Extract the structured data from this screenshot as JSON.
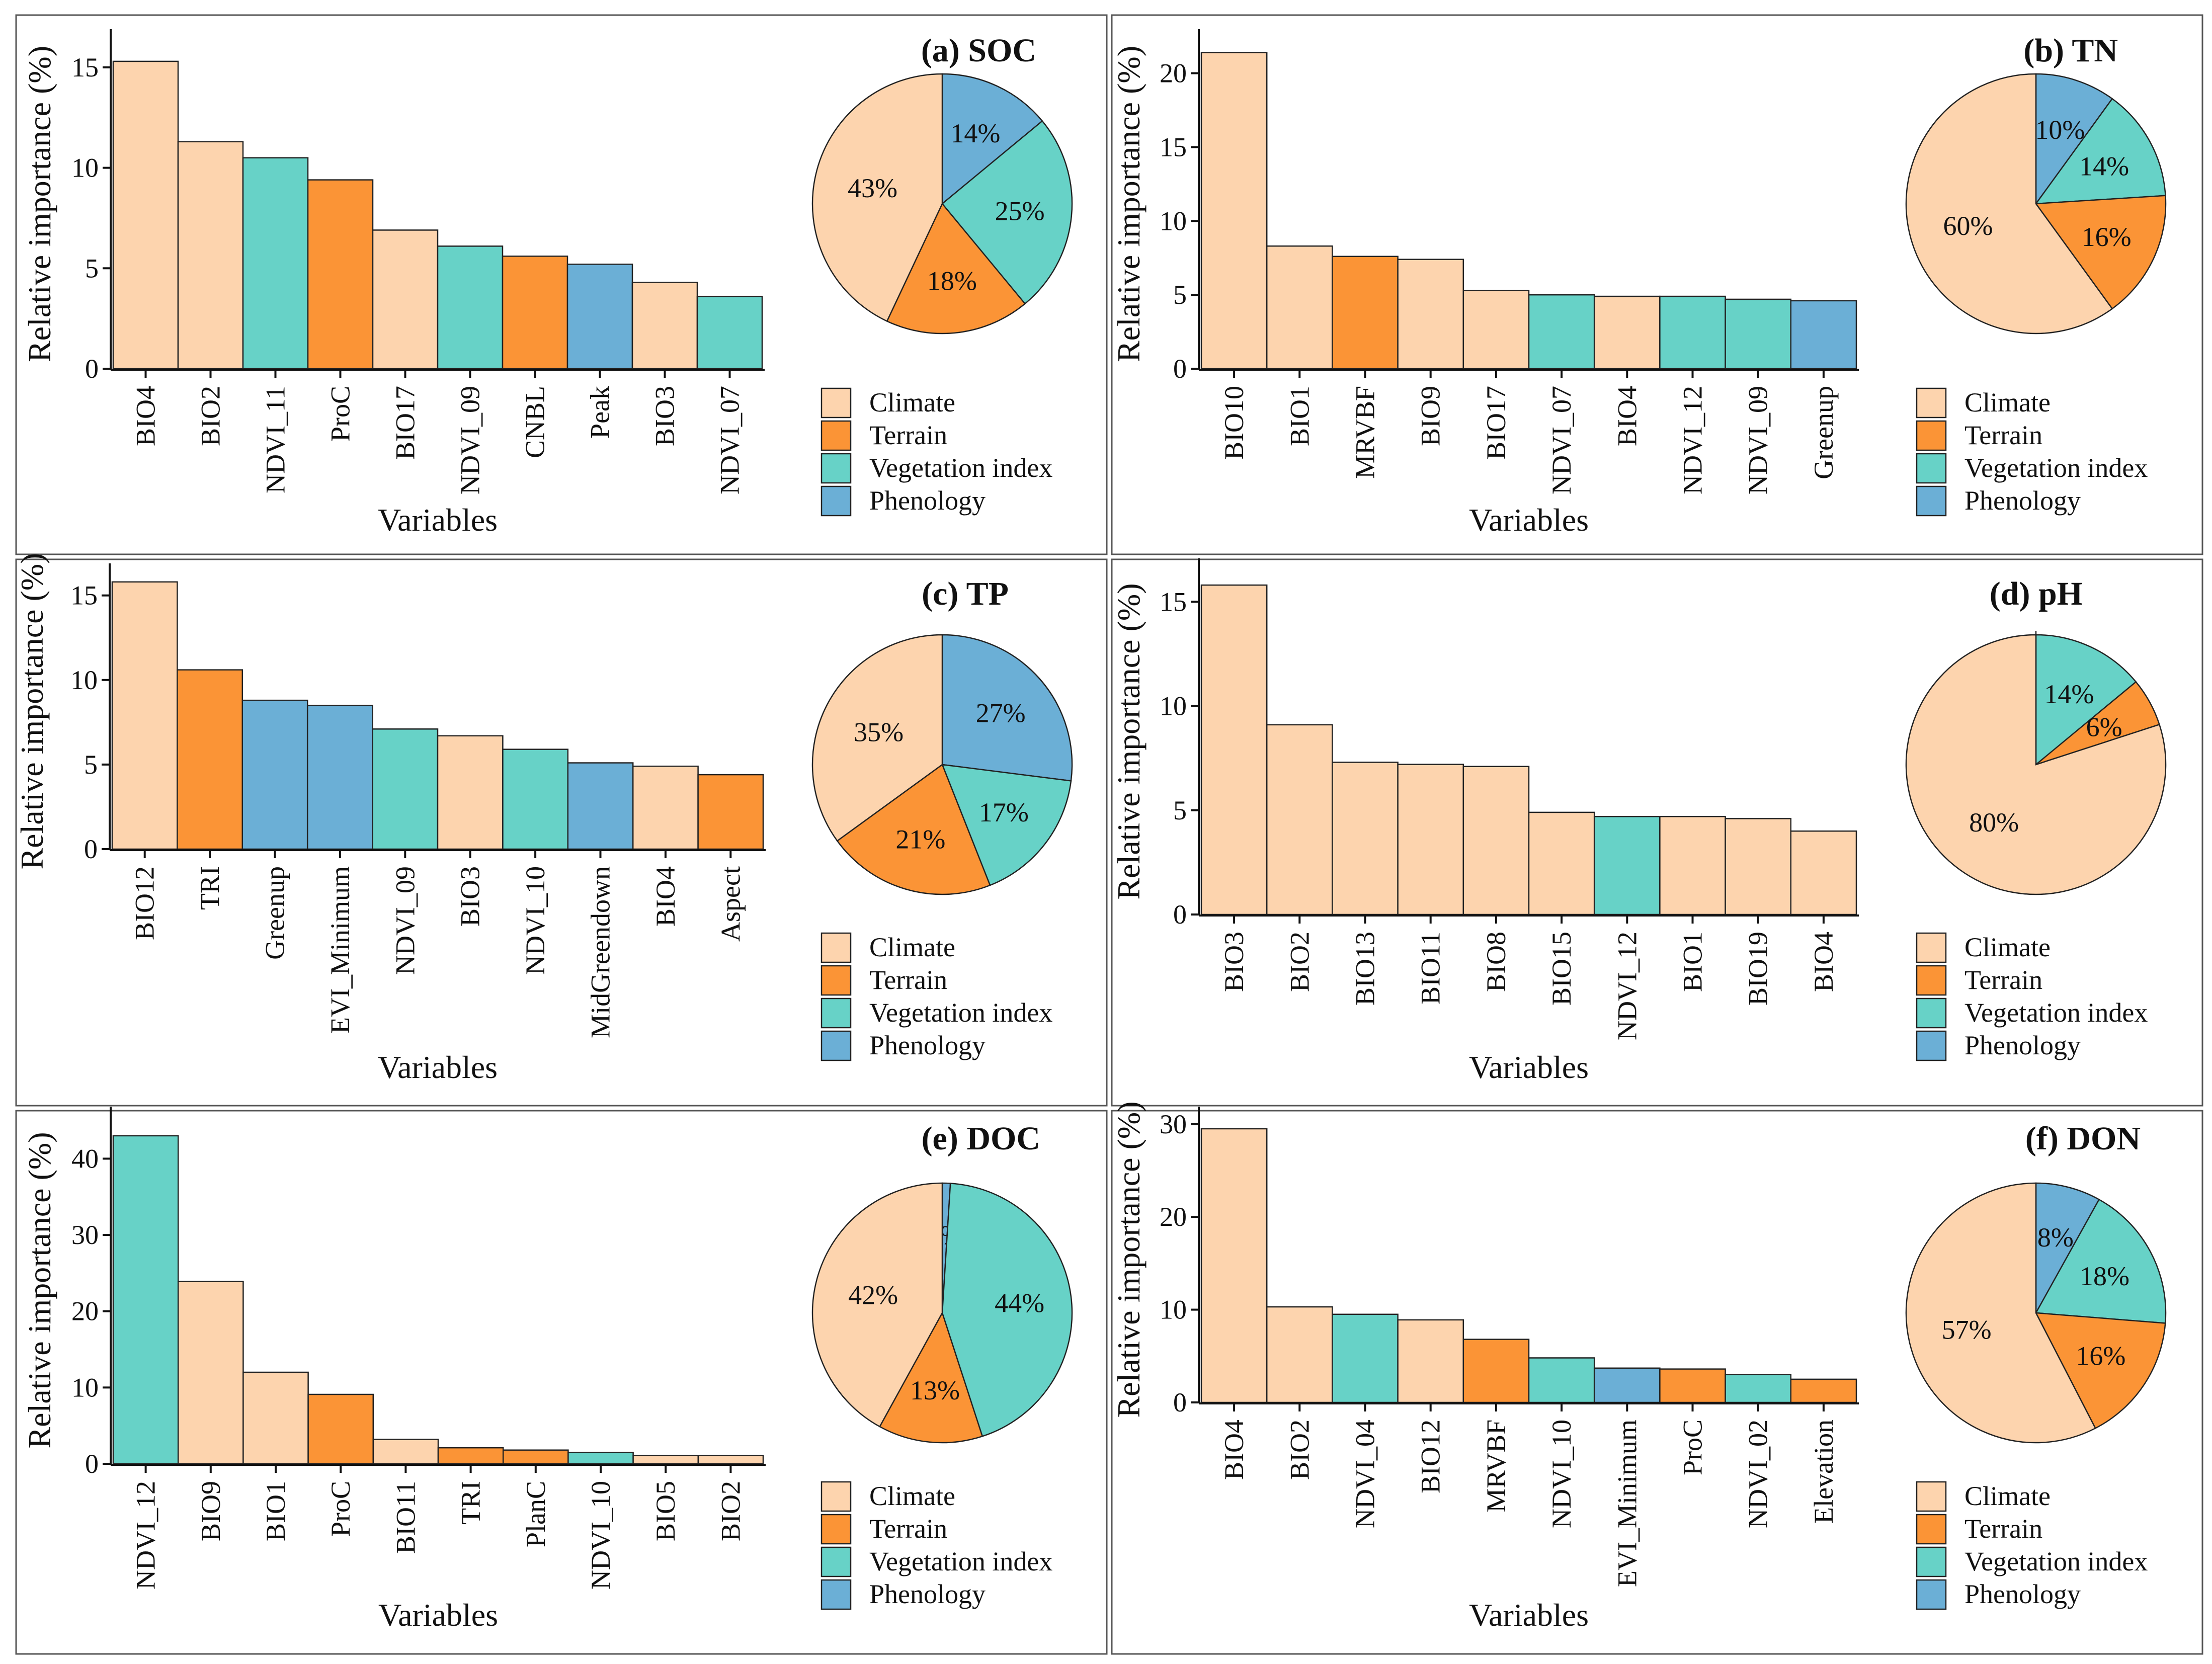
{
  "figure": {
    "x_axis_title": "Variables",
    "legend_title": "",
    "category_colors": {
      "Climate": "#FDD4AE",
      "Terrain": "#FB9436",
      "Vegetation index": "#67D2C7",
      "Phenology": "#6BAFD6"
    },
    "legend_entries": [
      "Climate",
      "Terrain",
      "Vegetation index",
      "Phenology"
    ]
  },
  "chart_data": [
    {
      "type": "bar",
      "panel": "a",
      "title": "(a) SOC",
      "xlabel": "Variables",
      "ylabel": "Relative importance (%)",
      "ylim": [
        0,
        16.4
      ],
      "yticks": [
        0,
        5,
        10,
        15
      ],
      "categories": [
        "BIO4",
        "BIO2",
        "NDVI_11",
        "ProC",
        "BIO17",
        "NDVI_09",
        "CNBL",
        "Peak",
        "BIO3",
        "NDVI_07"
      ],
      "values": [
        15.3,
        11.3,
        10.5,
        9.4,
        6.9,
        6.1,
        5.6,
        5.2,
        4.3,
        3.6
      ],
      "groups": [
        "Climate",
        "Climate",
        "Vegetation index",
        "Terrain",
        "Climate",
        "Vegetation index",
        "Terrain",
        "Phenology",
        "Climate",
        "Vegetation index"
      ],
      "pie": {
        "labels": [
          "Phenology",
          "Vegetation index",
          "Terrain",
          "Climate"
        ],
        "values": [
          14,
          25,
          18,
          43
        ],
        "value_labels": [
          "14%",
          "25%",
          "18%",
          "43%"
        ]
      }
    },
    {
      "type": "bar",
      "panel": "b",
      "title": "(b) TN",
      "xlabel": "Variables",
      "ylabel": "Relative importance (%)",
      "ylim": [
        0,
        22.3
      ],
      "yticks": [
        0,
        5,
        10,
        15,
        20
      ],
      "categories": [
        "BIO10",
        "BIO1",
        "MRVBF",
        "BIO9",
        "BIO17",
        "NDVI_07",
        "BIO4",
        "NDVI_12",
        "NDVI_09",
        "Greenup"
      ],
      "values": [
        21.4,
        8.3,
        7.6,
        7.4,
        5.3,
        5.0,
        4.9,
        4.9,
        4.7,
        4.6
      ],
      "groups": [
        "Climate",
        "Climate",
        "Terrain",
        "Climate",
        "Climate",
        "Vegetation index",
        "Climate",
        "Vegetation index",
        "Vegetation index",
        "Phenology"
      ],
      "pie": {
        "labels": [
          "Phenology",
          "Vegetation index",
          "Terrain",
          "Climate"
        ],
        "values": [
          10,
          14,
          16,
          60
        ],
        "value_labels": [
          "10%",
          "14%",
          "16%",
          "60%"
        ]
      }
    },
    {
      "type": "bar",
      "panel": "c",
      "title": "(c) TP",
      "xlabel": "Variables",
      "ylabel": "Relative importance (%)",
      "ylim": [
        0,
        16.3
      ],
      "yticks": [
        0,
        5,
        10,
        15
      ],
      "categories": [
        "BIO12",
        "TRI",
        "Greenup",
        "EVI_Minimum",
        "NDVI_09",
        "BIO3",
        "NDVI_10",
        "MidGreendown",
        "BIO4",
        "Aspect"
      ],
      "values": [
        15.8,
        10.6,
        8.8,
        8.5,
        7.1,
        6.7,
        5.9,
        5.1,
        4.9,
        4.4
      ],
      "groups": [
        "Climate",
        "Terrain",
        "Phenology",
        "Phenology",
        "Vegetation index",
        "Climate",
        "Vegetation index",
        "Phenology",
        "Climate",
        "Terrain"
      ],
      "pie": {
        "labels": [
          "Phenology",
          "Vegetation index",
          "Terrain",
          "Climate"
        ],
        "values": [
          27,
          17,
          21,
          35
        ],
        "value_labels": [
          "27%",
          "17%",
          "21%",
          "35%"
        ]
      }
    },
    {
      "type": "bar",
      "panel": "d",
      "title": "(d) pH",
      "xlabel": "Variables",
      "ylabel": "Relative importance (%)",
      "ylim": [
        0,
        16.6
      ],
      "yticks": [
        0,
        5,
        10,
        15
      ],
      "categories": [
        "BIO3",
        "BIO2",
        "BIO13",
        "BIO11",
        "BIO8",
        "BIO15",
        "NDVI_12",
        "BIO1",
        "BIO19",
        "BIO4"
      ],
      "values": [
        15.8,
        9.1,
        7.3,
        7.2,
        7.1,
        4.9,
        4.7,
        4.7,
        4.6,
        4.0
      ],
      "groups": [
        "Climate",
        "Climate",
        "Climate",
        "Climate",
        "Climate",
        "Climate",
        "Vegetation index",
        "Climate",
        "Climate",
        "Climate"
      ],
      "pie": {
        "labels": [
          "Phenology",
          "Vegetation index",
          "Terrain",
          "Climate"
        ],
        "values": [
          0,
          14,
          6,
          80
        ],
        "value_labels": [
          "",
          "14%",
          "6%",
          "80%"
        ]
      }
    },
    {
      "type": "bar",
      "panel": "e",
      "title": "(e) DOC",
      "xlabel": "Variables",
      "ylabel": "Relative importance (%)",
      "ylim": [
        0,
        45.5
      ],
      "yticks": [
        0,
        10,
        20,
        30,
        40
      ],
      "categories": [
        "NDVI_12",
        "BIO9",
        "BIO1",
        "ProC",
        "BIO11",
        "TRI",
        "PlanC",
        "NDVI_10",
        "BIO5",
        "BIO2"
      ],
      "values": [
        43.0,
        23.9,
        12.0,
        9.1,
        3.2,
        2.1,
        1.8,
        1.5,
        1.1,
        1.1
      ],
      "groups": [
        "Vegetation index",
        "Climate",
        "Climate",
        "Terrain",
        "Climate",
        "Terrain",
        "Terrain",
        "Vegetation index",
        "Climate",
        "Climate"
      ],
      "pie": {
        "labels": [
          "Phenology",
          "Vegetation index",
          "Terrain",
          "Climate"
        ],
        "values": [
          1,
          44,
          13,
          42
        ],
        "value_labels": [
          "1%",
          "44%",
          "13%",
          "42%"
        ]
      }
    },
    {
      "type": "bar",
      "panel": "f",
      "title": "(f) DON",
      "xlabel": "Variables",
      "ylabel": "Relative importance (%)",
      "ylim": [
        0,
        30.8
      ],
      "yticks": [
        0,
        10,
        20,
        30
      ],
      "categories": [
        "BIO4",
        "BIO2",
        "NDVI_04",
        "BIO12",
        "MRVBF",
        "NDVI_10",
        "EVI_Minimum",
        "ProC",
        "NDVI_02",
        "Elevation"
      ],
      "values": [
        29.5,
        10.3,
        9.5,
        8.9,
        6.8,
        4.8,
        3.7,
        3.6,
        3.0,
        2.5
      ],
      "groups": [
        "Climate",
        "Climate",
        "Vegetation index",
        "Climate",
        "Terrain",
        "Vegetation index",
        "Phenology",
        "Terrain",
        "Vegetation index",
        "Terrain"
      ],
      "pie": {
        "labels": [
          "Phenology",
          "Vegetation index",
          "Terrain",
          "Climate"
        ],
        "values": [
          8,
          18,
          16,
          57
        ],
        "value_labels": [
          "8%",
          "18%",
          "16%",
          "57%"
        ]
      }
    }
  ]
}
